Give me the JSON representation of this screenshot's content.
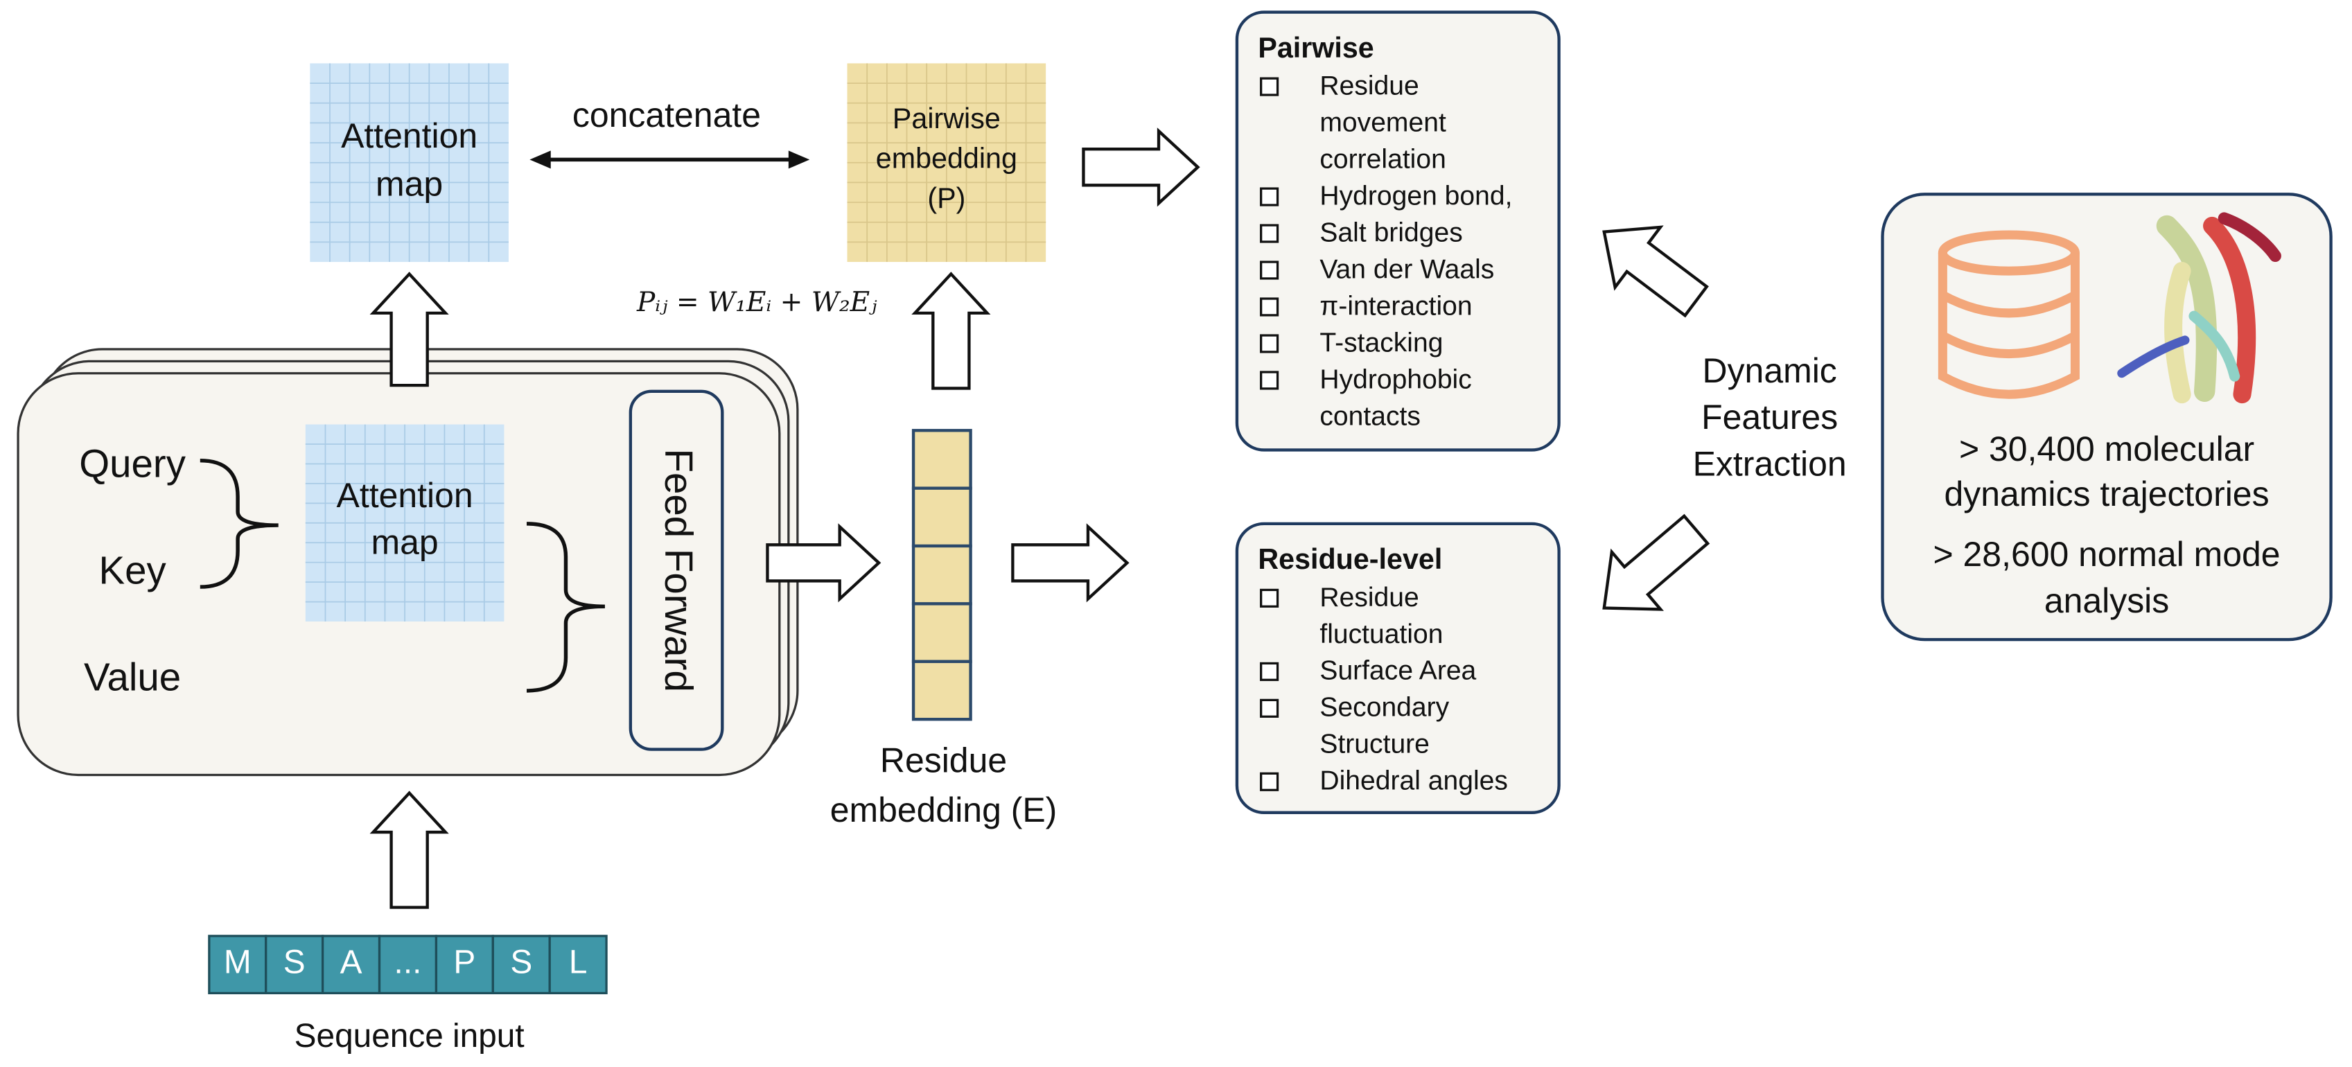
{
  "attention_map": [
    "Attention",
    "map"
  ],
  "concatenate": "concatenate",
  "pairwise_embedding": [
    "Pairwise",
    "embedding",
    "(P)"
  ],
  "formula": "Pᵢⱼ = W₁Eᵢ + W₂Eⱼ",
  "encoder": {
    "inputs": [
      "Query",
      "Key",
      "Value"
    ],
    "attention_map": [
      "Attention",
      "map"
    ],
    "feed_forward": "Feed Forward"
  },
  "residue_embedding": [
    "Residue",
    "embedding (E)"
  ],
  "sequence": {
    "tokens": [
      "M",
      "S",
      "A",
      "...",
      "P",
      "S",
      "L"
    ],
    "label": "Sequence input"
  },
  "pairwise_features": {
    "title": "Pairwise",
    "items": [
      [
        "Residue",
        "movement",
        "correlation"
      ],
      [
        "Hydrogen bond,"
      ],
      [
        "Salt bridges"
      ],
      [
        "Van der Waals"
      ],
      [
        "π-interaction"
      ],
      [
        "T-stacking"
      ],
      [
        "Hydrophobic",
        "contacts"
      ]
    ]
  },
  "residue_features": {
    "title": "Residue-level",
    "items": [
      [
        "Residue",
        "fluctuation"
      ],
      [
        "Surface Area"
      ],
      [
        "Secondary",
        "Structure"
      ],
      [
        "Dihedral angles"
      ]
    ]
  },
  "extraction_label": [
    "Dynamic",
    "Features",
    "Extraction"
  ],
  "data_source": [
    "> 30,400 molecular",
    "dynamics trajectories",
    "> 28,600 normal mode",
    "analysis"
  ]
}
